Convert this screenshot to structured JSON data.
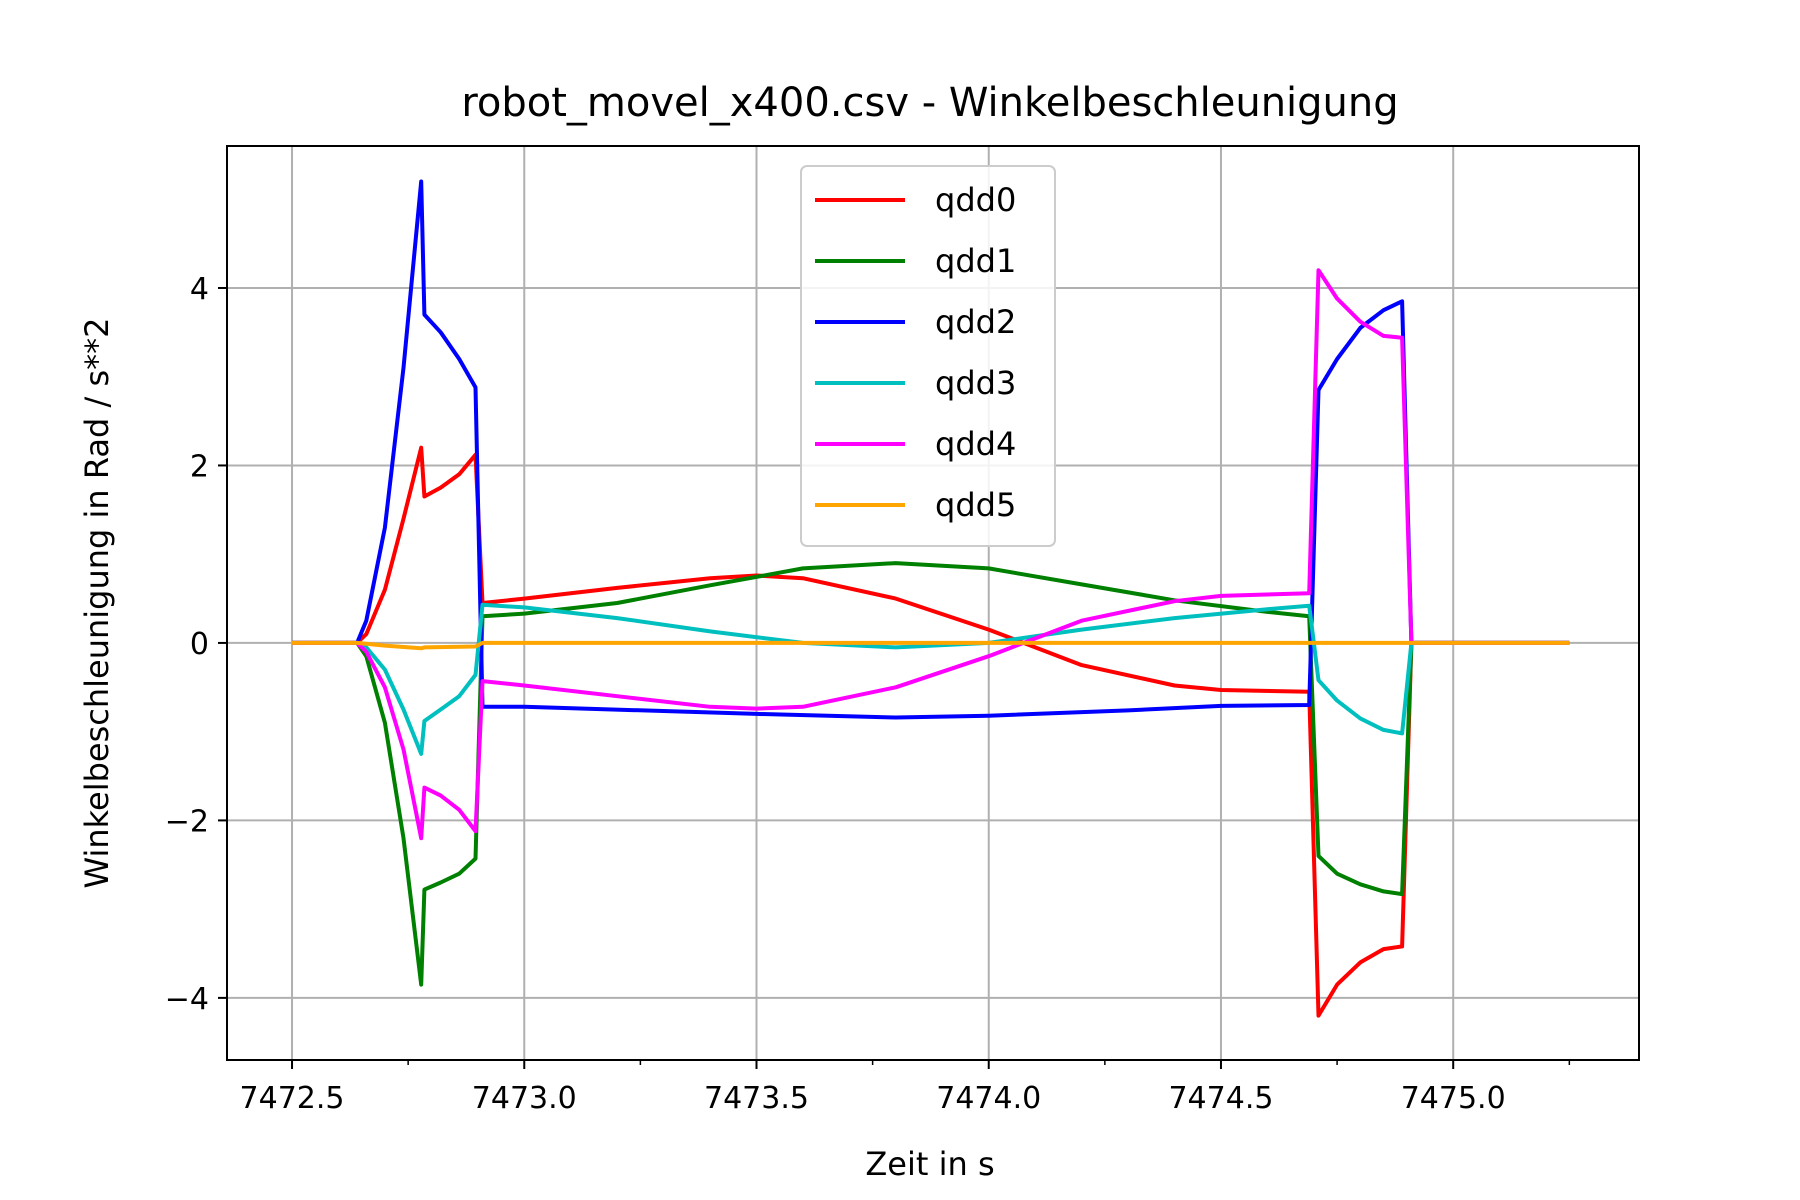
{
  "chart_data": {
    "type": "line",
    "title": "robot_movel_x400.csv - Winkelbeschleunigung",
    "xlabel": "Zeit in s",
    "ylabel": "Winkelbeschleunigung in Rad / s**2",
    "xlim": [
      7472.36,
      7475.4
    ],
    "ylim": [
      -4.7,
      5.6
    ],
    "xticks": [
      7472.5,
      7473.0,
      7473.5,
      7474.0,
      7474.5,
      7475.0
    ],
    "xtick_labels": [
      "7472.5",
      "7473.0",
      "7473.5",
      "7474.0",
      "7474.5",
      "7475.0"
    ],
    "yticks": [
      -4,
      -2,
      0,
      2,
      4
    ],
    "ytick_labels": [
      "−4",
      "−2",
      "0",
      "2",
      "4"
    ],
    "grid": true,
    "legend_position": "upper-center",
    "series": [
      {
        "name": "qdd0",
        "color": "#ff0000",
        "points": [
          [
            7472.5,
            0
          ],
          [
            7472.64,
            0
          ],
          [
            7472.66,
            0.1
          ],
          [
            7472.7,
            0.6
          ],
          [
            7472.74,
            1.4
          ],
          [
            7472.778,
            2.2
          ],
          [
            7472.785,
            1.65
          ],
          [
            7472.82,
            1.75
          ],
          [
            7472.86,
            1.9
          ],
          [
            7472.895,
            2.12
          ],
          [
            7472.91,
            0.45
          ],
          [
            7473.0,
            0.5
          ],
          [
            7473.2,
            0.62
          ],
          [
            7473.4,
            0.73
          ],
          [
            7473.5,
            0.76
          ],
          [
            7473.6,
            0.73
          ],
          [
            7473.8,
            0.5
          ],
          [
            7474.0,
            0.15
          ],
          [
            7474.2,
            -0.25
          ],
          [
            7474.4,
            -0.48
          ],
          [
            7474.5,
            -0.53
          ],
          [
            7474.69,
            -0.55
          ],
          [
            7474.71,
            -4.2
          ],
          [
            7474.75,
            -3.85
          ],
          [
            7474.8,
            -3.6
          ],
          [
            7474.85,
            -3.45
          ],
          [
            7474.89,
            -3.42
          ],
          [
            7474.91,
            0
          ],
          [
            7475.25,
            0
          ]
        ]
      },
      {
        "name": "qdd1",
        "color": "#008000",
        "points": [
          [
            7472.5,
            0
          ],
          [
            7472.64,
            0
          ],
          [
            7472.66,
            -0.15
          ],
          [
            7472.7,
            -0.9
          ],
          [
            7472.74,
            -2.2
          ],
          [
            7472.778,
            -3.85
          ],
          [
            7472.785,
            -2.78
          ],
          [
            7472.82,
            -2.7
          ],
          [
            7472.86,
            -2.6
          ],
          [
            7472.895,
            -2.43
          ],
          [
            7472.91,
            0.3
          ],
          [
            7473.0,
            0.33
          ],
          [
            7473.2,
            0.45
          ],
          [
            7473.4,
            0.65
          ],
          [
            7473.6,
            0.84
          ],
          [
            7473.8,
            0.9
          ],
          [
            7474.0,
            0.84
          ],
          [
            7474.2,
            0.66
          ],
          [
            7474.4,
            0.48
          ],
          [
            7474.6,
            0.35
          ],
          [
            7474.69,
            0.3
          ],
          [
            7474.71,
            -2.4
          ],
          [
            7474.75,
            -2.6
          ],
          [
            7474.8,
            -2.72
          ],
          [
            7474.85,
            -2.8
          ],
          [
            7474.89,
            -2.83
          ],
          [
            7474.91,
            0
          ],
          [
            7475.25,
            0
          ]
        ]
      },
      {
        "name": "qdd2",
        "color": "#0000ff",
        "points": [
          [
            7472.5,
            0
          ],
          [
            7472.64,
            0
          ],
          [
            7472.66,
            0.25
          ],
          [
            7472.7,
            1.3
          ],
          [
            7472.74,
            3.1
          ],
          [
            7472.778,
            5.2
          ],
          [
            7472.785,
            3.7
          ],
          [
            7472.82,
            3.5
          ],
          [
            7472.86,
            3.2
          ],
          [
            7472.895,
            2.88
          ],
          [
            7472.91,
            -0.72
          ],
          [
            7473.0,
            -0.72
          ],
          [
            7473.5,
            -0.8
          ],
          [
            7473.8,
            -0.84
          ],
          [
            7474.0,
            -0.82
          ],
          [
            7474.3,
            -0.76
          ],
          [
            7474.5,
            -0.71
          ],
          [
            7474.69,
            -0.7
          ],
          [
            7474.71,
            2.85
          ],
          [
            7474.75,
            3.2
          ],
          [
            7474.8,
            3.55
          ],
          [
            7474.85,
            3.75
          ],
          [
            7474.89,
            3.85
          ],
          [
            7474.91,
            0
          ],
          [
            7475.25,
            0
          ]
        ]
      },
      {
        "name": "qdd3",
        "color": "#00bfbf",
        "points": [
          [
            7472.5,
            0
          ],
          [
            7472.64,
            0
          ],
          [
            7472.66,
            -0.05
          ],
          [
            7472.7,
            -0.3
          ],
          [
            7472.74,
            -0.75
          ],
          [
            7472.778,
            -1.25
          ],
          [
            7472.785,
            -0.88
          ],
          [
            7472.82,
            -0.75
          ],
          [
            7472.86,
            -0.6
          ],
          [
            7472.895,
            -0.36
          ],
          [
            7472.91,
            0.43
          ],
          [
            7473.0,
            0.4
          ],
          [
            7473.2,
            0.28
          ],
          [
            7473.4,
            0.13
          ],
          [
            7473.6,
            0.0
          ],
          [
            7473.8,
            -0.05
          ],
          [
            7474.0,
            0.0
          ],
          [
            7474.2,
            0.15
          ],
          [
            7474.4,
            0.28
          ],
          [
            7474.6,
            0.38
          ],
          [
            7474.69,
            0.42
          ],
          [
            7474.71,
            -0.42
          ],
          [
            7474.75,
            -0.65
          ],
          [
            7474.8,
            -0.85
          ],
          [
            7474.85,
            -0.98
          ],
          [
            7474.89,
            -1.02
          ],
          [
            7474.91,
            0
          ],
          [
            7475.25,
            0
          ]
        ]
      },
      {
        "name": "qdd4",
        "color": "#ff00ff",
        "points": [
          [
            7472.5,
            0
          ],
          [
            7472.64,
            0
          ],
          [
            7472.66,
            -0.1
          ],
          [
            7472.7,
            -0.5
          ],
          [
            7472.74,
            -1.2
          ],
          [
            7472.778,
            -2.2
          ],
          [
            7472.785,
            -1.63
          ],
          [
            7472.82,
            -1.72
          ],
          [
            7472.86,
            -1.88
          ],
          [
            7472.895,
            -2.12
          ],
          [
            7472.91,
            -0.43
          ],
          [
            7473.0,
            -0.48
          ],
          [
            7473.2,
            -0.6
          ],
          [
            7473.4,
            -0.72
          ],
          [
            7473.5,
            -0.74
          ],
          [
            7473.6,
            -0.72
          ],
          [
            7473.8,
            -0.5
          ],
          [
            7474.0,
            -0.15
          ],
          [
            7474.2,
            0.25
          ],
          [
            7474.4,
            0.47
          ],
          [
            7474.5,
            0.53
          ],
          [
            7474.69,
            0.56
          ],
          [
            7474.71,
            4.2
          ],
          [
            7474.75,
            3.88
          ],
          [
            7474.8,
            3.62
          ],
          [
            7474.85,
            3.46
          ],
          [
            7474.89,
            3.44
          ],
          [
            7474.91,
            0
          ],
          [
            7475.25,
            0
          ]
        ]
      },
      {
        "name": "qdd5",
        "color": "#ffa500",
        "points": [
          [
            7472.5,
            0
          ],
          [
            7472.64,
            0
          ],
          [
            7472.7,
            -0.03
          ],
          [
            7472.778,
            -0.06
          ],
          [
            7472.785,
            -0.05
          ],
          [
            7472.895,
            -0.04
          ],
          [
            7472.91,
            0
          ],
          [
            7475.25,
            0
          ]
        ]
      }
    ]
  }
}
